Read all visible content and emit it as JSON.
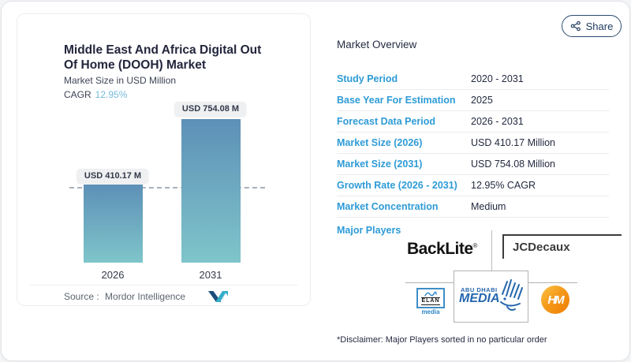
{
  "share": {
    "label": "Share",
    "icon": "share-nodes-icon"
  },
  "chart_card": {
    "title_line1": "Middle East And Africa Digital Out",
    "title_line2": "Of Home (DOOH) Market",
    "subtitle": "Market Size in USD Million",
    "cagr_label": "CAGR",
    "cagr_value": "12.95%",
    "source_label": "Source :",
    "source_value": "Mordor Intelligence",
    "source_logo": "mordor-intelligence-logo"
  },
  "chart_data": {
    "type": "bar",
    "title": "Middle East And Africa Digital Out Of Home (DOOH) Market",
    "subtitle": "Market Size in USD Million",
    "cagr": "12.95%",
    "categories": [
      "2026",
      "2031"
    ],
    "values": [
      410.17,
      754.08
    ],
    "value_labels": [
      "USD 410.17 M",
      "USD 754.08 M"
    ],
    "ylabel": "Market Size in USD Million",
    "ylim": [
      0,
      754.08
    ],
    "dashed_reference_value": 410.17,
    "grid": false,
    "bar_color_top": "#5d90b7",
    "bar_color_bottom": "#7fc5ca"
  },
  "overview": {
    "heading": "Market Overview",
    "rows": [
      {
        "label": "Study Period",
        "value": "2020 - 2031"
      },
      {
        "label": "Base Year For Estimation",
        "value": "2025"
      },
      {
        "label": "Forecast Data Period",
        "value": "2026 - 2031"
      },
      {
        "label": "Market Size (2026)",
        "value": "USD 410.17 Million"
      },
      {
        "label": "Market Size (2031)",
        "value": "USD 754.08 Million"
      },
      {
        "label": "Growth Rate (2026 - 2031)",
        "value": "12.95% CAGR"
      },
      {
        "label": "Market Concentration",
        "value": "Medium"
      }
    ],
    "major_players_label": "Major Players",
    "major_players": [
      "BackLite",
      "JCDecaux",
      "ELAN media",
      "Abu Dhabi Media",
      "Hypermedia"
    ],
    "disclaimer": "*Disclaimer: Major Players sorted in no particular order"
  },
  "logos": {
    "backlite": {
      "text": "BackLite",
      "reg": "®"
    },
    "jcdecaux": {
      "text": "JCDecaux"
    },
    "elan": {
      "line1": "ELAN",
      "line2": "media"
    },
    "abu_dhabi": {
      "line1": "ABU DHABI",
      "line2": "MEDIA"
    },
    "hm": {
      "text": "HM"
    }
  },
  "colors": {
    "label_blue": "#2e9bd6",
    "dark_navy_text": "#252b42",
    "cagr_light_blue": "#74b9de",
    "bar_gradient_top": "#5d90b7",
    "bar_gradient_bottom": "#7fc5ca",
    "hm_orange": "#ee7d02",
    "adm_blue": "#2566ae",
    "elan_blue": "#3f8ec6"
  }
}
